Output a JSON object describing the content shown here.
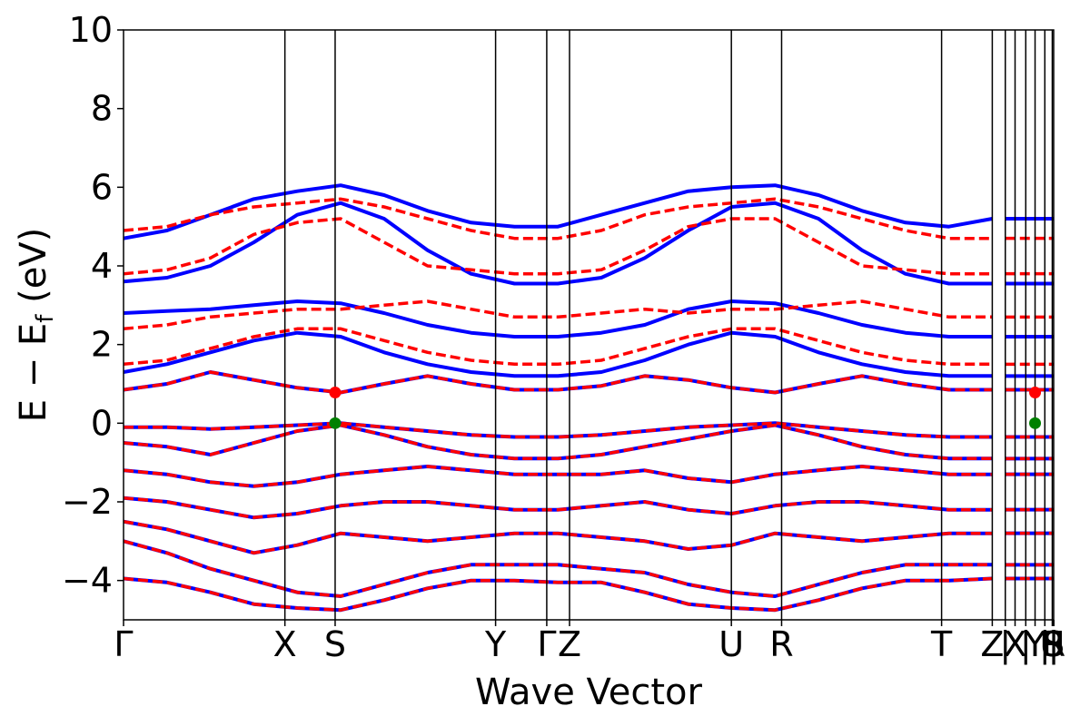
{
  "chart_data": {
    "type": "line",
    "xlabel": "Wave Vector",
    "ylabel": "E − E",
    "ylabel_sub": "f",
    "ylabel_unit": " (eV)",
    "ylim": [
      -5,
      10
    ],
    "yticks": [
      -4,
      -2,
      0,
      2,
      4,
      6,
      8,
      10
    ],
    "ytick_labels": [
      "−4",
      "−2",
      "0",
      "2",
      "4",
      "6",
      "8",
      "10"
    ],
    "xlim": [
      0,
      1
    ],
    "kpoints": [
      {
        "label": "Γ",
        "x": 0.0
      },
      {
        "label": "X",
        "x": 0.1735
      },
      {
        "label": "S",
        "x": 0.2275
      },
      {
        "label": "Y",
        "x": 0.4
      },
      {
        "label": "Γ",
        "x": 0.455
      },
      {
        "label": "Z",
        "x": 0.4795
      },
      {
        "label": "U",
        "x": 0.6535
      },
      {
        "label": "R",
        "x": 0.7075
      },
      {
        "label": "T",
        "x": 0.8795
      },
      {
        "label": "Z",
        "x": 0.934
      },
      {
        "label": "|",
        "x": 0.948
      },
      {
        "label": "X",
        "x": 0.9585
      },
      {
        "label": "|",
        "x": 0.97
      },
      {
        "label": "Y",
        "x": 0.98
      },
      {
        "label": "|",
        "x": 0.9905
      },
      {
        "label": "U",
        "x": 0.9985
      },
      {
        "label": "|",
        "x": 1.0
      },
      {
        "label": "R",
        "x": 1.0
      },
      {
        "label": "|",
        "x": 1.0
      },
      {
        "label": "S",
        "x": 1.0
      }
    ],
    "grid": false,
    "legend": "none",
    "series": [
      {
        "style": "solid",
        "color": "#0000ff",
        "bands": [
          [
            -3.95,
            -4.05,
            -4.3,
            -4.6,
            -4.7,
            -4.75,
            -4.5,
            -4.2,
            -4.0,
            -4.0,
            -4.05,
            -4.05,
            -4.3,
            -4.6,
            -4.7,
            -4.75,
            -4.5,
            -4.2,
            -4.0,
            -4.0,
            -3.95
          ],
          [
            -3.0,
            -3.3,
            -3.7,
            -4.0,
            -4.3,
            -4.4,
            -4.1,
            -3.8,
            -3.6,
            -3.6,
            -3.6,
            -3.7,
            -3.8,
            -4.1,
            -4.3,
            -4.4,
            -4.1,
            -3.8,
            -3.6,
            -3.6,
            -3.6
          ],
          [
            -2.5,
            -2.7,
            -3.0,
            -3.3,
            -3.1,
            -2.8,
            -2.9,
            -3.0,
            -2.9,
            -2.8,
            -2.8,
            -2.9,
            -3.0,
            -3.2,
            -3.1,
            -2.8,
            -2.9,
            -3.0,
            -2.9,
            -2.8,
            -2.8
          ],
          [
            -1.9,
            -2.0,
            -2.2,
            -2.4,
            -2.3,
            -2.1,
            -2.0,
            -2.0,
            -2.1,
            -2.2,
            -2.2,
            -2.1,
            -2.0,
            -2.2,
            -2.3,
            -2.1,
            -2.0,
            -2.0,
            -2.1,
            -2.2,
            -2.2
          ],
          [
            -1.2,
            -1.3,
            -1.5,
            -1.6,
            -1.5,
            -1.3,
            -1.2,
            -1.1,
            -1.2,
            -1.3,
            -1.3,
            -1.3,
            -1.2,
            -1.4,
            -1.5,
            -1.3,
            -1.2,
            -1.1,
            -1.2,
            -1.3,
            -1.3
          ],
          [
            -0.5,
            -0.6,
            -0.8,
            -0.5,
            -0.2,
            -0.05,
            -0.3,
            -0.6,
            -0.8,
            -0.9,
            -0.9,
            -0.8,
            -0.6,
            -0.4,
            -0.2,
            -0.05,
            -0.3,
            -0.6,
            -0.8,
            -0.9,
            -0.9
          ],
          [
            -0.1,
            -0.1,
            -0.15,
            -0.1,
            -0.05,
            0.0,
            -0.1,
            -0.2,
            -0.3,
            -0.35,
            -0.35,
            -0.3,
            -0.2,
            -0.1,
            -0.05,
            0.0,
            -0.1,
            -0.2,
            -0.3,
            -0.35,
            -0.35
          ],
          [
            0.85,
            1.0,
            1.3,
            1.1,
            0.9,
            0.78,
            1.0,
            1.2,
            1.0,
            0.85,
            0.85,
            0.95,
            1.2,
            1.1,
            0.9,
            0.78,
            1.0,
            1.2,
            1.0,
            0.85,
            0.85
          ],
          [
            1.3,
            1.5,
            1.8,
            2.1,
            2.3,
            2.2,
            1.8,
            1.5,
            1.3,
            1.2,
            1.2,
            1.3,
            1.6,
            2.0,
            2.3,
            2.2,
            1.8,
            1.5,
            1.3,
            1.2,
            1.2
          ],
          [
            2.8,
            2.85,
            2.9,
            3.0,
            3.1,
            3.05,
            2.8,
            2.5,
            2.3,
            2.2,
            2.2,
            2.3,
            2.5,
            2.9,
            3.1,
            3.05,
            2.8,
            2.5,
            2.3,
            2.2,
            2.2
          ],
          [
            3.6,
            3.7,
            4.0,
            4.6,
            5.3,
            5.6,
            5.2,
            4.4,
            3.8,
            3.55,
            3.55,
            3.7,
            4.2,
            4.9,
            5.5,
            5.6,
            5.2,
            4.4,
            3.8,
            3.55,
            3.55
          ],
          [
            4.7,
            4.9,
            5.3,
            5.7,
            5.9,
            6.05,
            5.8,
            5.4,
            5.1,
            5.0,
            5.0,
            5.3,
            5.6,
            5.9,
            6.0,
            6.05,
            5.8,
            5.4,
            5.1,
            5.0,
            5.2
          ]
        ]
      },
      {
        "style": "dashed",
        "color": "#ff0000",
        "bands": [
          [
            -3.95,
            -4.05,
            -4.3,
            -4.6,
            -4.7,
            -4.75,
            -4.5,
            -4.2,
            -4.0,
            -4.0,
            -4.05,
            -4.05,
            -4.3,
            -4.6,
            -4.7,
            -4.75,
            -4.5,
            -4.2,
            -4.0,
            -4.0,
            -3.95
          ],
          [
            -3.0,
            -3.3,
            -3.7,
            -4.0,
            -4.3,
            -4.4,
            -4.1,
            -3.8,
            -3.6,
            -3.6,
            -3.6,
            -3.7,
            -3.8,
            -4.1,
            -4.3,
            -4.4,
            -4.1,
            -3.8,
            -3.6,
            -3.6,
            -3.6
          ],
          [
            -2.5,
            -2.7,
            -3.0,
            -3.3,
            -3.1,
            -2.8,
            -2.9,
            -3.0,
            -2.9,
            -2.8,
            -2.8,
            -2.9,
            -3.0,
            -3.2,
            -3.1,
            -2.8,
            -2.9,
            -3.0,
            -2.9,
            -2.8,
            -2.8
          ],
          [
            -1.9,
            -2.0,
            -2.2,
            -2.4,
            -2.3,
            -2.1,
            -2.0,
            -2.0,
            -2.1,
            -2.2,
            -2.2,
            -2.1,
            -2.0,
            -2.2,
            -2.3,
            -2.1,
            -2.0,
            -2.0,
            -2.1,
            -2.2,
            -2.2
          ],
          [
            -1.2,
            -1.3,
            -1.5,
            -1.6,
            -1.5,
            -1.3,
            -1.2,
            -1.1,
            -1.2,
            -1.3,
            -1.3,
            -1.3,
            -1.2,
            -1.4,
            -1.5,
            -1.3,
            -1.2,
            -1.1,
            -1.2,
            -1.3,
            -1.3
          ],
          [
            -0.5,
            -0.6,
            -0.8,
            -0.5,
            -0.2,
            -0.05,
            -0.3,
            -0.6,
            -0.8,
            -0.9,
            -0.9,
            -0.8,
            -0.6,
            -0.4,
            -0.2,
            -0.05,
            -0.3,
            -0.6,
            -0.8,
            -0.9,
            -0.9
          ],
          [
            -0.1,
            -0.1,
            -0.15,
            -0.1,
            -0.05,
            0.0,
            -0.1,
            -0.2,
            -0.3,
            -0.35,
            -0.35,
            -0.3,
            -0.2,
            -0.1,
            -0.05,
            0.0,
            -0.1,
            -0.2,
            -0.3,
            -0.35,
            -0.35
          ],
          [
            0.85,
            1.0,
            1.3,
            1.1,
            0.9,
            0.78,
            1.0,
            1.2,
            1.0,
            0.85,
            0.85,
            0.95,
            1.2,
            1.1,
            0.9,
            0.78,
            1.0,
            1.2,
            1.0,
            0.85,
            0.85
          ],
          [
            1.5,
            1.6,
            1.9,
            2.2,
            2.4,
            2.4,
            2.1,
            1.8,
            1.6,
            1.5,
            1.5,
            1.6,
            1.9,
            2.2,
            2.4,
            2.4,
            2.1,
            1.8,
            1.6,
            1.5,
            1.5
          ],
          [
            2.4,
            2.5,
            2.7,
            2.8,
            2.9,
            2.9,
            3.0,
            3.1,
            2.9,
            2.7,
            2.7,
            2.8,
            2.9,
            2.8,
            2.9,
            2.9,
            3.0,
            3.1,
            2.9,
            2.7,
            2.7
          ],
          [
            3.8,
            3.9,
            4.2,
            4.8,
            5.1,
            5.2,
            4.6,
            4.0,
            3.9,
            3.8,
            3.8,
            3.9,
            4.4,
            5.0,
            5.2,
            5.2,
            4.6,
            4.0,
            3.9,
            3.8,
            3.8
          ],
          [
            4.9,
            5.0,
            5.3,
            5.5,
            5.6,
            5.7,
            5.5,
            5.2,
            4.9,
            4.7,
            4.7,
            4.9,
            5.3,
            5.5,
            5.6,
            5.7,
            5.5,
            5.2,
            4.9,
            4.7,
            4.7
          ]
        ]
      }
    ],
    "markers": [
      {
        "label": "CBM",
        "x": 0.2275,
        "y": 0.78,
        "color": "#ff0000"
      },
      {
        "label": "VBM",
        "x": 0.2275,
        "y": 0.0,
        "color": "#008000"
      },
      {
        "label": "CBM",
        "x": 0.98,
        "y": 0.78,
        "color": "#ff0000"
      },
      {
        "label": "VBM",
        "x": 0.98,
        "y": 0.0,
        "color": "#008000"
      }
    ]
  }
}
